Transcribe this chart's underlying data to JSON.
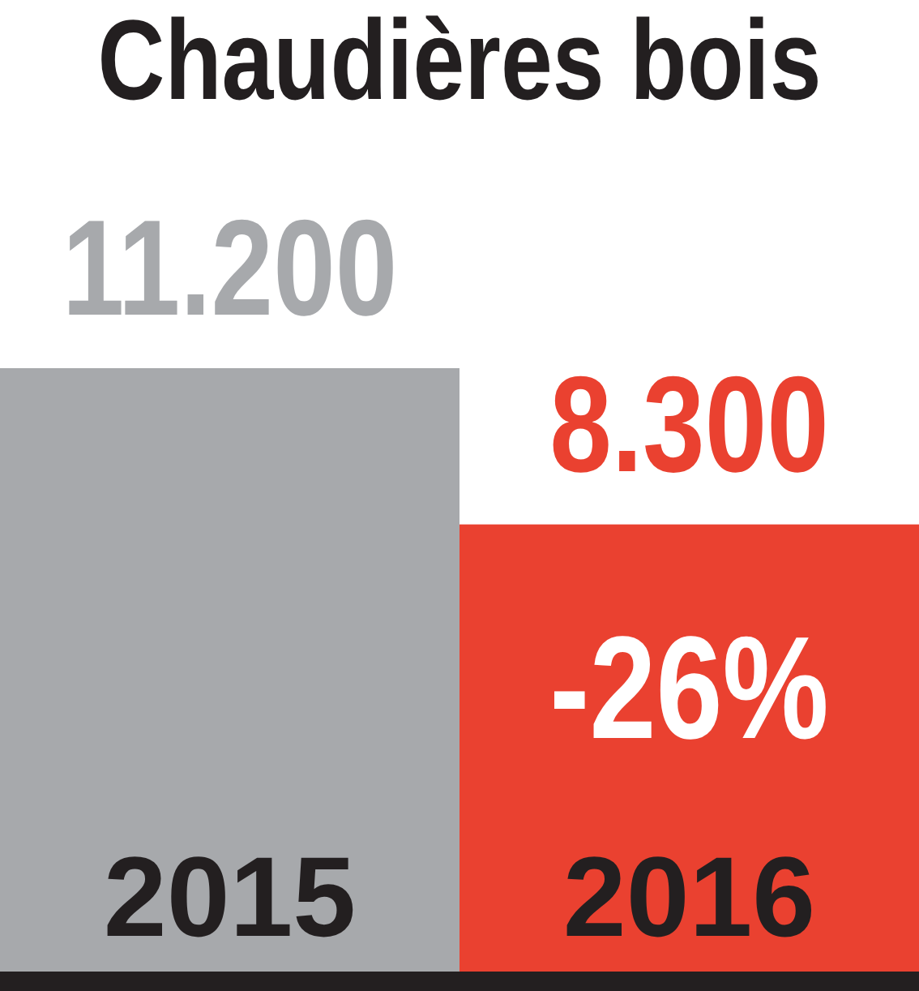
{
  "chart_data": {
    "type": "bar",
    "title": "Chaudières bois",
    "categories": [
      "2015",
      "2016"
    ],
    "values": [
      11200,
      8300
    ],
    "colors": [
      "#a7a9ac",
      "#ea4130"
    ],
    "value_labels": [
      "11.200",
      "8.300"
    ],
    "annotations": [
      "-26%"
    ]
  }
}
